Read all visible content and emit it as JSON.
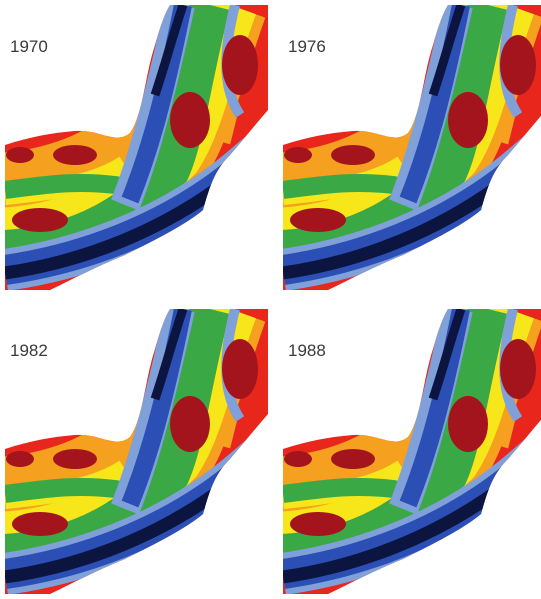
{
  "panels": [
    {
      "label": "1970"
    },
    {
      "label": "1976"
    },
    {
      "label": "1982"
    },
    {
      "label": "1988"
    }
  ]
}
